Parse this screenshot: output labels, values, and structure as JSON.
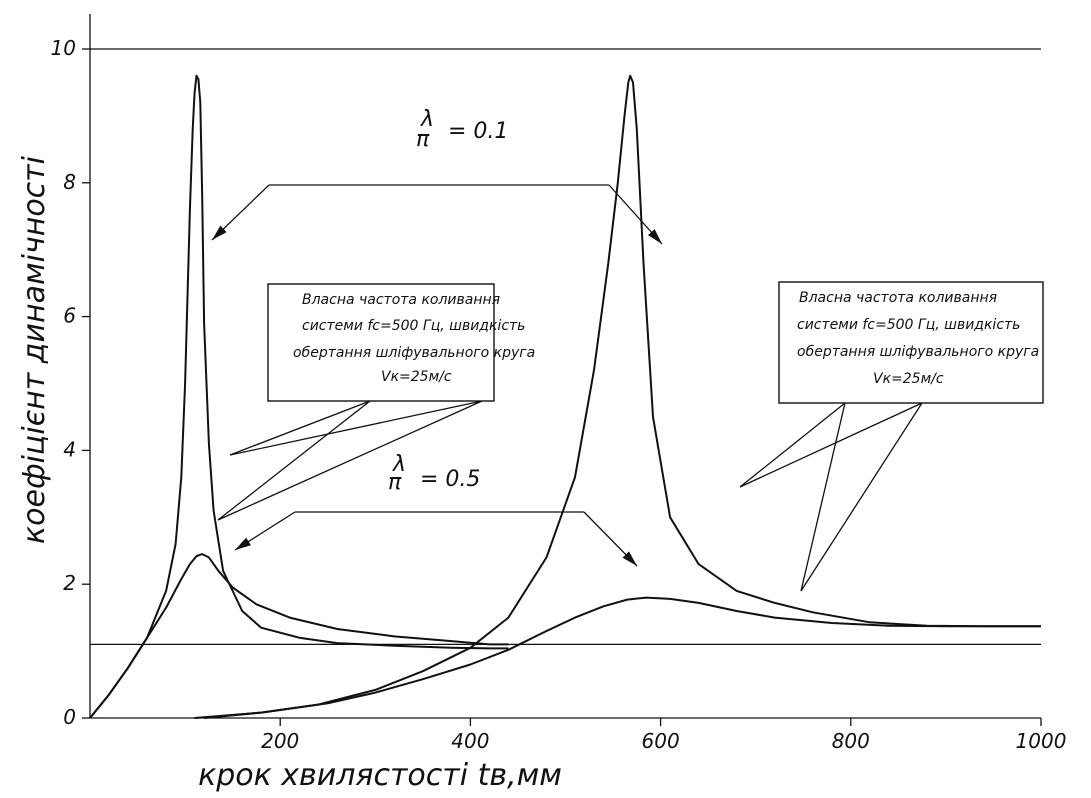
{
  "chart_data": {
    "type": "line",
    "title": "",
    "xlabel": "крок хвилястості tв,мм",
    "ylabel": "коефіцієнт динамічності",
    "xlim": [
      0,
      1000
    ],
    "ylim": [
      0,
      10
    ],
    "x_ticks": [
      "200",
      "400",
      "600",
      "800",
      "1000"
    ],
    "y_ticks": [
      "0",
      "2",
      "4",
      "6",
      "8",
      "10"
    ],
    "grid": false,
    "reference_lines_y": [
      10,
      1.1
    ],
    "series": [
      {
        "x": [
          0,
          20,
          40,
          60,
          80,
          90,
          96,
          100,
          105,
          108,
          110,
          112,
          114,
          116,
          118,
          120,
          125,
          130,
          140,
          160,
          180,
          220,
          260,
          320,
          380,
          420,
          440
        ],
        "y": [
          0,
          0.35,
          0.75,
          1.2,
          1.9,
          2.6,
          3.6,
          5.0,
          7.6,
          8.8,
          9.35,
          9.6,
          9.55,
          9.2,
          7.8,
          5.9,
          4.1,
          3.1,
          2.2,
          1.6,
          1.35,
          1.2,
          1.12,
          1.08,
          1.05,
          1.04,
          1.04
        ]
      },
      {
        "x": [
          120,
          180,
          240,
          300,
          350,
          400,
          440,
          480,
          510,
          530,
          545,
          555,
          562,
          566,
          568,
          571,
          575,
          582,
          592,
          610,
          640,
          680,
          720,
          760,
          820,
          880,
          940,
          1000
        ],
        "y": [
          0,
          0.08,
          0.2,
          0.42,
          0.7,
          1.05,
          1.5,
          2.4,
          3.6,
          5.2,
          6.8,
          8.0,
          9.0,
          9.5,
          9.6,
          9.5,
          8.8,
          6.8,
          4.5,
          3.0,
          2.3,
          1.9,
          1.72,
          1.58,
          1.43,
          1.38,
          1.37,
          1.37
        ]
      },
      {
        "x": [
          0,
          20,
          40,
          60,
          80,
          95,
          105,
          112,
          118,
          125,
          135,
          150,
          175,
          210,
          260,
          320,
          380,
          420,
          440
        ],
        "y": [
          0,
          0.35,
          0.75,
          1.2,
          1.65,
          2.05,
          2.3,
          2.42,
          2.45,
          2.4,
          2.2,
          1.95,
          1.7,
          1.5,
          1.33,
          1.22,
          1.15,
          1.1,
          1.1
        ]
      },
      {
        "x": [
          110,
          180,
          250,
          300,
          350,
          400,
          440,
          480,
          510,
          540,
          565,
          585,
          610,
          640,
          680,
          720,
          780,
          840,
          900,
          960,
          1000
        ],
        "y": [
          0,
          0.08,
          0.22,
          0.38,
          0.58,
          0.8,
          1.02,
          1.3,
          1.5,
          1.67,
          1.77,
          1.8,
          1.78,
          1.72,
          1.6,
          1.5,
          1.42,
          1.38,
          1.37,
          1.37,
          1.37
        ]
      }
    ],
    "annotations": [
      {
        "text": [
          "Власна частота коливання",
          "системи fс=500 Гц, швидкість",
          "обертання шліфувального круга",
          "Vк=25м/с"
        ]
      },
      {
        "text": [
          "Власна частота коливання",
          "системи fс=500 Гц, швидкість",
          "обертання шліфувального круга",
          "Vк=25м/с"
        ]
      }
    ],
    "equations": [
      {
        "numerator": "λ",
        "denominator": "π",
        "value": "= 0.1"
      },
      {
        "numerator": "λ",
        "denominator": "π",
        "value": "= 0.5"
      }
    ]
  }
}
